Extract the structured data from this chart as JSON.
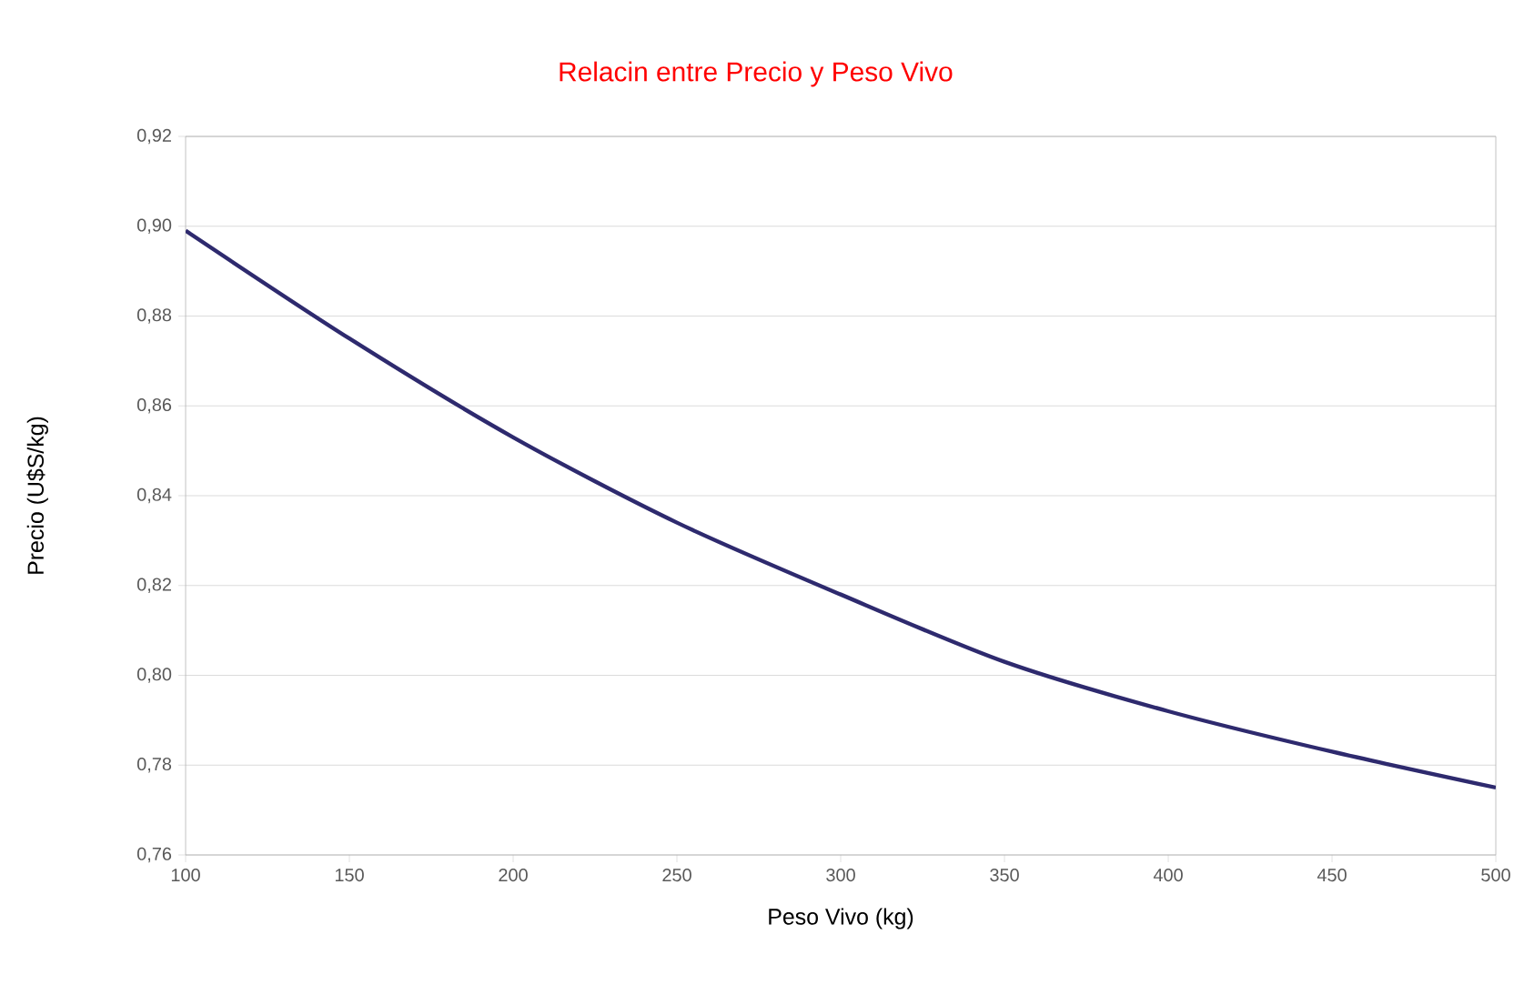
{
  "chart_data": {
    "type": "line",
    "title": "Relacin entre Precio y Peso Vivo",
    "xlabel": "Peso Vivo (kg)",
    "ylabel": "Precio (U$S/kg)",
    "x": [
      100,
      150,
      200,
      250,
      300,
      350,
      400,
      450,
      500
    ],
    "series": [
      {
        "color": "#2e2a6e",
        "values": [
          0.899,
          0.875,
          0.853,
          0.834,
          0.818,
          0.803,
          0.792,
          0.783,
          0.775
        ]
      }
    ],
    "xlim": [
      100,
      500
    ],
    "xticks": [
      100,
      150,
      200,
      250,
      300,
      350,
      400,
      450,
      500
    ],
    "ylim": [
      0.76,
      0.92
    ],
    "yticks": [
      {
        "value": 0.76,
        "label": "0,76"
      },
      {
        "value": 0.78,
        "label": "0,78"
      },
      {
        "value": 0.8,
        "label": "0,80"
      },
      {
        "value": 0.82,
        "label": "0,82"
      },
      {
        "value": 0.84,
        "label": "0,84"
      },
      {
        "value": 0.86,
        "label": "0,86"
      },
      {
        "value": 0.88,
        "label": "0,88"
      },
      {
        "value": 0.9,
        "label": "0,90"
      },
      {
        "value": 0.92,
        "label": "0,92"
      }
    ],
    "grid": "y",
    "marker": "none",
    "line_style": "solid"
  }
}
